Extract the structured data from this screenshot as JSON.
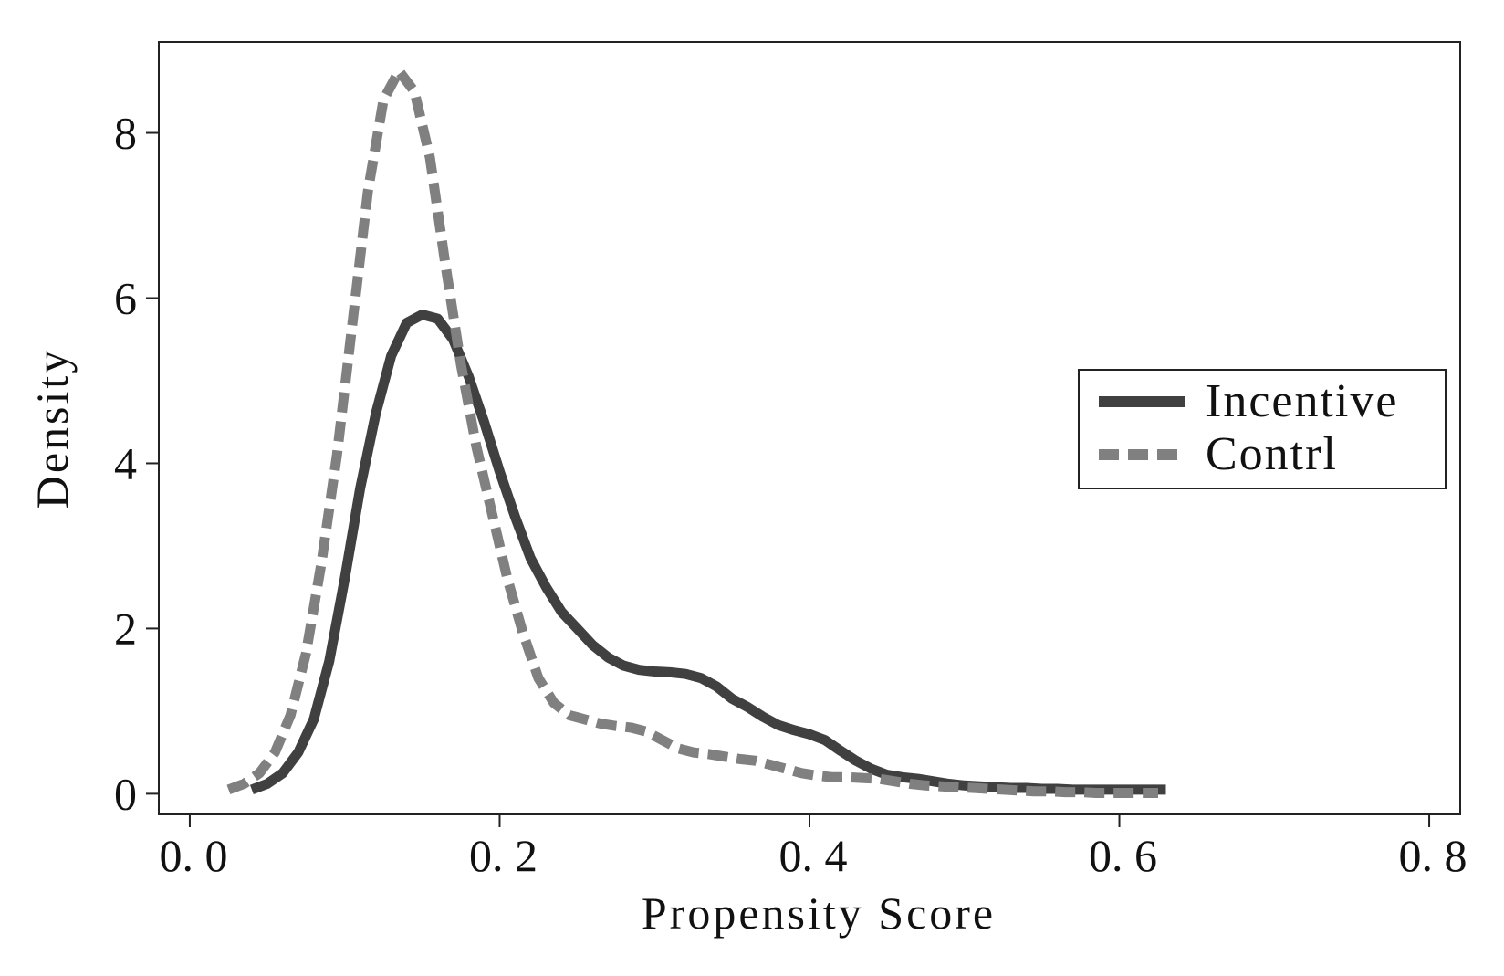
{
  "chart_data": {
    "type": "line",
    "title": "",
    "xlabel": "Propensity Score",
    "ylabel": "Density",
    "xlim": [
      -0.02,
      0.82
    ],
    "ylim": [
      -0.25,
      9.1
    ],
    "xticks": [
      0.0,
      0.2,
      0.4,
      0.6,
      0.8
    ],
    "xtick_labels": [
      "0. 0",
      "0. 2",
      "0. 4",
      "0. 6",
      "0. 8"
    ],
    "yticks": [
      0,
      2,
      4,
      6,
      8
    ],
    "ytick_labels": [
      "0",
      "2",
      "4",
      "6",
      "8"
    ],
    "grid": false,
    "legend_position": "right",
    "series": [
      {
        "name": "Incentive",
        "style": "solid",
        "color": "#404040",
        "x": [
          0.04,
          0.05,
          0.06,
          0.07,
          0.08,
          0.09,
          0.1,
          0.11,
          0.12,
          0.13,
          0.14,
          0.15,
          0.16,
          0.17,
          0.18,
          0.19,
          0.2,
          0.21,
          0.22,
          0.23,
          0.24,
          0.25,
          0.26,
          0.27,
          0.28,
          0.29,
          0.3,
          0.31,
          0.32,
          0.33,
          0.34,
          0.35,
          0.36,
          0.37,
          0.38,
          0.39,
          0.4,
          0.41,
          0.42,
          0.43,
          0.44,
          0.45,
          0.46,
          0.47,
          0.48,
          0.49,
          0.5,
          0.51,
          0.52,
          0.53,
          0.54,
          0.55,
          0.56,
          0.57,
          0.58,
          0.59,
          0.6,
          0.61,
          0.62,
          0.63
        ],
        "y": [
          0.05,
          0.12,
          0.25,
          0.5,
          0.9,
          1.6,
          2.6,
          3.7,
          4.6,
          5.3,
          5.7,
          5.8,
          5.75,
          5.5,
          5.05,
          4.5,
          3.9,
          3.35,
          2.85,
          2.5,
          2.2,
          2.0,
          1.8,
          1.65,
          1.55,
          1.5,
          1.48,
          1.47,
          1.45,
          1.4,
          1.3,
          1.15,
          1.05,
          0.93,
          0.83,
          0.77,
          0.72,
          0.65,
          0.52,
          0.4,
          0.3,
          0.23,
          0.2,
          0.18,
          0.15,
          0.12,
          0.1,
          0.09,
          0.08,
          0.07,
          0.07,
          0.06,
          0.06,
          0.05,
          0.05,
          0.05,
          0.05,
          0.05,
          0.05,
          0.05
        ]
      },
      {
        "name": "Contrl",
        "style": "dashed",
        "color": "#808080",
        "x": [
          0.025,
          0.035,
          0.045,
          0.055,
          0.065,
          0.075,
          0.085,
          0.095,
          0.105,
          0.115,
          0.125,
          0.135,
          0.145,
          0.155,
          0.165,
          0.175,
          0.185,
          0.195,
          0.205,
          0.215,
          0.225,
          0.235,
          0.245,
          0.255,
          0.265,
          0.275,
          0.285,
          0.295,
          0.305,
          0.315,
          0.325,
          0.335,
          0.345,
          0.355,
          0.365,
          0.375,
          0.385,
          0.395,
          0.405,
          0.415,
          0.425,
          0.435,
          0.445,
          0.455,
          0.465,
          0.475,
          0.485,
          0.495,
          0.505,
          0.515,
          0.525,
          0.535,
          0.545,
          0.555,
          0.565,
          0.575,
          0.585,
          0.595,
          0.605,
          0.615,
          0.625
        ],
        "y": [
          0.05,
          0.12,
          0.25,
          0.5,
          0.95,
          1.7,
          2.8,
          4.1,
          5.7,
          7.3,
          8.4,
          8.75,
          8.5,
          7.7,
          6.4,
          5.2,
          4.2,
          3.4,
          2.6,
          1.95,
          1.4,
          1.1,
          0.95,
          0.9,
          0.85,
          0.82,
          0.8,
          0.75,
          0.65,
          0.55,
          0.5,
          0.48,
          0.45,
          0.42,
          0.4,
          0.35,
          0.3,
          0.25,
          0.22,
          0.2,
          0.2,
          0.19,
          0.18,
          0.15,
          0.12,
          0.1,
          0.09,
          0.08,
          0.07,
          0.06,
          0.05,
          0.04,
          0.03,
          0.03,
          0.02,
          0.02,
          0.01,
          0.01,
          0.01,
          0.01,
          0.01
        ]
      }
    ]
  }
}
